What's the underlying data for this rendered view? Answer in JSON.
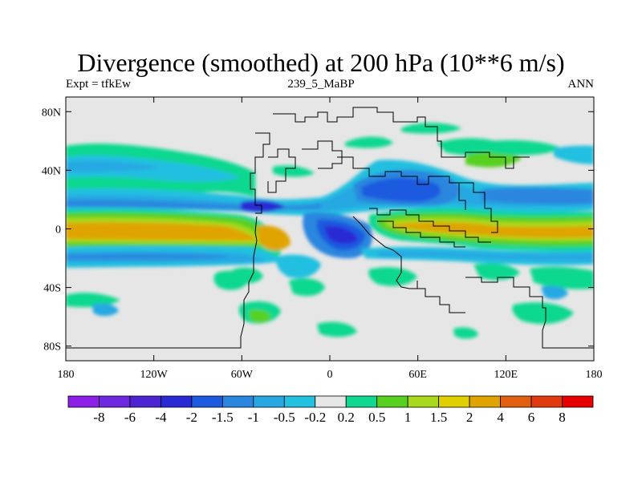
{
  "title": "Divergence (smoothed) at 200 hPa (10**6 m/s)",
  "subtitle_left": "Expt = tfkEw",
  "subtitle_center": "239_5_MaBP",
  "subtitle_right": "ANN",
  "map": {
    "projection": "cylindrical-equidistant",
    "lon_range": [
      -180,
      180
    ],
    "lat_range": [
      -90,
      90
    ],
    "x_ticks": [
      {
        "value": -180,
        "label": "180"
      },
      {
        "value": -120,
        "label": "120W"
      },
      {
        "value": -60,
        "label": "60W"
      },
      {
        "value": 0,
        "label": "0"
      },
      {
        "value": 60,
        "label": "60E"
      },
      {
        "value": 120,
        "label": "120E"
      },
      {
        "value": 180,
        "label": "180"
      }
    ],
    "y_ticks": [
      {
        "value": 80,
        "label": "80N"
      },
      {
        "value": 40,
        "label": "40N"
      },
      {
        "value": 0,
        "label": "0"
      },
      {
        "value": -40,
        "label": "40S"
      },
      {
        "value": -80,
        "label": "80S"
      }
    ],
    "missing_color": "#e6e6e6",
    "coastline_color": "#000000"
  },
  "colorbar": {
    "colors": [
      "#8c20e6",
      "#6e28e0",
      "#4c24d0",
      "#2a2ad4",
      "#1c5ae0",
      "#2a86de",
      "#28a8e2",
      "#24c0e0",
      "#e6e6e6",
      "#10d890",
      "#58d020",
      "#a8d81c",
      "#e0d000",
      "#e0a400",
      "#e06010",
      "#e03a10",
      "#e80000"
    ],
    "labels": [
      "-8",
      "-6",
      "-4",
      "-2",
      "-1.5",
      "-1",
      "-0.5",
      "-0.2",
      "0.2",
      "0.5",
      "1",
      "1.5",
      "2",
      "4",
      "6",
      "8"
    ]
  }
}
